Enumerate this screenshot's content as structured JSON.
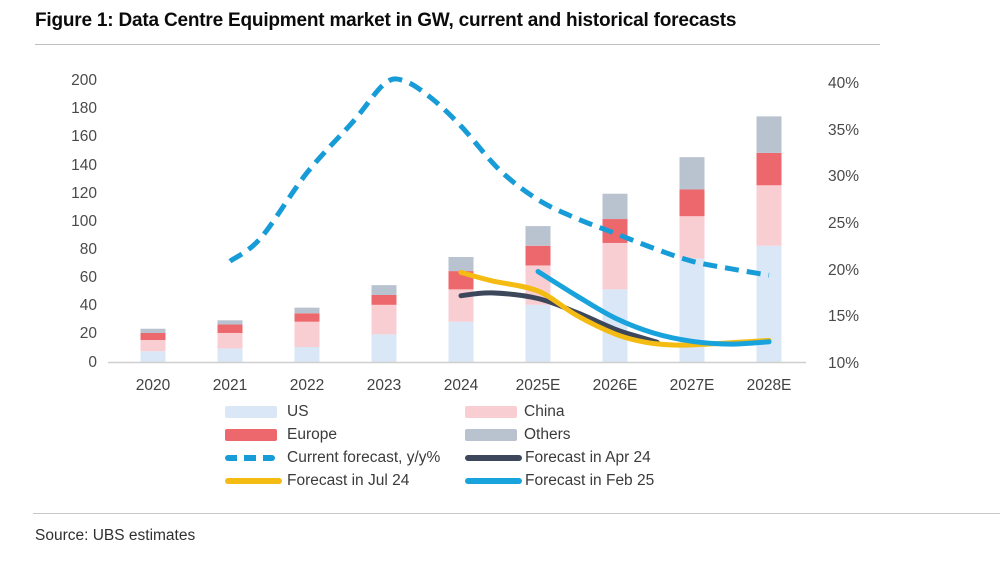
{
  "figure": {
    "title": "Figure 1: Data Centre Equipment market in GW, current and historical forecasts",
    "source": "Source: UBS estimates"
  },
  "colors": {
    "us": "#d9e7f6",
    "china": "#f9ced3",
    "europe": "#ed686c",
    "others": "#b9c3d0",
    "current_forecast": "#189cd8",
    "forecast_apr24": "#3d475c",
    "forecast_jul24": "#f4bb12",
    "forecast_feb25": "#18a3dd",
    "axis_text": "#4a4a4a",
    "baseline": "#cfcfcf"
  },
  "chart_data": {
    "type": "combo-stacked-bar-line",
    "title": "Data Centre Equipment market in GW, current and historical forecasts",
    "categories": [
      "2020",
      "2021",
      "2022",
      "2023",
      "2024",
      "2025E",
      "2026E",
      "2027E",
      "2028E"
    ],
    "left_axis": {
      "unit": "GW",
      "range": [
        0,
        200
      ],
      "ticks": [
        0,
        20,
        40,
        60,
        80,
        100,
        120,
        140,
        160,
        180,
        200
      ]
    },
    "right_axis": {
      "unit": "%",
      "range": [
        10,
        40
      ],
      "ticks": [
        "10%",
        "15%",
        "20%",
        "25%",
        "30%",
        "35%",
        "40%"
      ]
    },
    "grid": "off",
    "legend_position": "bottom",
    "bar_series": [
      {
        "name": "US",
        "color_key": "us",
        "values": [
          8,
          10,
          11,
          20,
          29,
          41,
          52,
          74,
          83
        ]
      },
      {
        "name": "China",
        "color_key": "china",
        "values": [
          8,
          11,
          18,
          21,
          23,
          28,
          33,
          30,
          43
        ]
      },
      {
        "name": "Europe",
        "color_key": "europe",
        "values": [
          5,
          6,
          6,
          7,
          13,
          14,
          17,
          19,
          23
        ]
      },
      {
        "name": "Others",
        "color_key": "others",
        "values": [
          3,
          3,
          4,
          7,
          10,
          14,
          18,
          23,
          26
        ]
      }
    ],
    "bar_totals": [
      24,
      30,
      39,
      55,
      75,
      97,
      120,
      146,
      175
    ],
    "line_series": [
      {
        "name": "Current forecast, y/y%",
        "color_key": "current_forecast",
        "dashed": true,
        "axis": "right",
        "points": [
          [
            1,
            21
          ],
          [
            1.4,
            23.5
          ],
          [
            2,
            30.5
          ],
          [
            2.6,
            36
          ],
          [
            3,
            40
          ],
          [
            3.25,
            40.4
          ],
          [
            3.6,
            38.6
          ],
          [
            4,
            35.5
          ],
          [
            4.5,
            30.8
          ],
          [
            5,
            27.6
          ],
          [
            5.5,
            25.6
          ],
          [
            6,
            24
          ],
          [
            6.5,
            22.4
          ],
          [
            7,
            21
          ],
          [
            7.5,
            20.2
          ],
          [
            8,
            19.5
          ]
        ],
        "values_at_years": {
          "2021": 21,
          "2022": 30.5,
          "2023": 40,
          "2024": 35.5,
          "2025E": 27.5,
          "2026E": 24,
          "2027E": 21,
          "2028E": 19.5
        }
      },
      {
        "name": "Forecast in Apr 24",
        "color_key": "forecast_apr24",
        "dashed": false,
        "axis": "right",
        "points": [
          [
            4,
            17.3
          ],
          [
            4.4,
            17.6
          ],
          [
            5,
            17.0
          ],
          [
            5.5,
            15.5
          ],
          [
            6,
            13.7
          ],
          [
            6.3,
            12.9
          ],
          [
            6.55,
            12.3
          ]
        ],
        "values_at_years": {
          "2024": 17.3,
          "2025E": 17.0,
          "2026E": 13.7
        }
      },
      {
        "name": "Forecast in Jul 24",
        "color_key": "forecast_jul24",
        "dashed": false,
        "axis": "right",
        "points": [
          [
            4,
            19.8
          ],
          [
            4.4,
            18.9
          ],
          [
            5,
            17.8
          ],
          [
            5.5,
            15.2
          ],
          [
            6,
            13.2
          ],
          [
            6.4,
            12.3
          ],
          [
            6.8,
            12.0
          ],
          [
            7.2,
            12.1
          ],
          [
            7.6,
            12.3
          ],
          [
            8,
            12.5
          ]
        ],
        "values_at_years": {
          "2024": 19.8,
          "2025E": 17.8,
          "2026E": 13.2,
          "2027E": 12.1,
          "2028E": 12.5
        }
      },
      {
        "name": "Forecast in Feb 25",
        "color_key": "forecast_feb25",
        "dashed": false,
        "axis": "right",
        "points": [
          [
            5,
            19.9
          ],
          [
            5.5,
            17.3
          ],
          [
            6,
            14.9
          ],
          [
            6.5,
            13.3
          ],
          [
            7,
            12.4
          ],
          [
            7.5,
            12.1
          ],
          [
            8,
            12.35
          ]
        ],
        "values_at_years": {
          "2025E": 19.9,
          "2026E": 14.9,
          "2027E": 12.4,
          "2028E": 12.35
        }
      }
    ],
    "legend": [
      {
        "label": "US",
        "type": "bar",
        "color_key": "us",
        "row": 0,
        "col": 0
      },
      {
        "label": "China",
        "type": "bar",
        "color_key": "china",
        "row": 0,
        "col": 1
      },
      {
        "label": "Europe",
        "type": "bar",
        "color_key": "europe",
        "row": 1,
        "col": 0
      },
      {
        "label": "Others",
        "type": "bar",
        "color_key": "others",
        "row": 1,
        "col": 1
      },
      {
        "label": "Current forecast, y/y%",
        "type": "dash",
        "color_key": "current_forecast",
        "row": 2,
        "col": 0
      },
      {
        "label": "Forecast in Apr 24",
        "type": "line",
        "color_key": "forecast_apr24",
        "row": 2,
        "col": 1
      },
      {
        "label": "Forecast in Jul 24",
        "type": "line",
        "color_key": "forecast_jul24",
        "row": 3,
        "col": 0
      },
      {
        "label": "Forecast in Feb 25",
        "type": "line",
        "color_key": "forecast_feb25",
        "row": 3,
        "col": 1
      }
    ]
  }
}
